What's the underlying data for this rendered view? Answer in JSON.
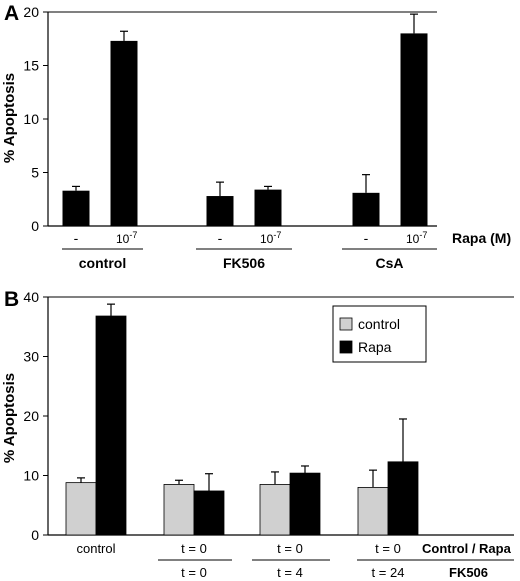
{
  "colors": {
    "black_bar": "#000000",
    "grey_bar": "#d0d0d0",
    "axis": "#000000"
  },
  "chart_data": [
    {
      "panel_label": "A",
      "type": "bar",
      "ylabel": "% Apoptosis",
      "ylim": [
        0,
        20
      ],
      "yticks": [
        "0",
        "5",
        "10",
        "15",
        "20"
      ],
      "grid": false,
      "x_row_label": "Rapa (M)",
      "groups": [
        {
          "name": "control",
          "bars": [
            {
              "label": "-",
              "value": 3.3,
              "error": 0.4
            },
            {
              "label": "10-7",
              "value": 17.3,
              "error": 0.9
            }
          ]
        },
        {
          "name": "FK506",
          "bars": [
            {
              "label": "-",
              "value": 2.8,
              "error": 1.3
            },
            {
              "label": "10-7",
              "value": 3.4,
              "error": 0.3
            }
          ]
        },
        {
          "name": "CsA",
          "bars": [
            {
              "label": "-",
              "value": 3.1,
              "error": 1.7
            },
            {
              "label": "10-7",
              "value": 18.0,
              "error": 1.8
            }
          ]
        }
      ],
      "tick_base": "10",
      "tick_exp": "-7"
    },
    {
      "panel_label": "B",
      "type": "bar",
      "ylabel": "% Apoptosis",
      "ylim": [
        0,
        40
      ],
      "yticks": [
        "0",
        "10",
        "20",
        "30",
        "40"
      ],
      "grid": false,
      "legend_position": "top-right",
      "series": [
        {
          "name": "control",
          "color": "#d0d0d0",
          "values": [
            8.8,
            8.5,
            8.5,
            8.0
          ],
          "errors": [
            0.8,
            0.7,
            2.1,
            2.9
          ]
        },
        {
          "name": "Rapa",
          "color": "#000000",
          "values": [
            36.8,
            7.4,
            10.4,
            12.3
          ],
          "errors": [
            2.0,
            2.9,
            1.2,
            7.2
          ]
        }
      ],
      "categories": [
        "control",
        "t = 0",
        "t = 0",
        "t = 0"
      ],
      "row1_right_label": "Control / Rapa",
      "row2_labels": [
        "t = 0",
        "t = 4",
        "t = 24"
      ],
      "row2_right_label": "FK506"
    }
  ]
}
